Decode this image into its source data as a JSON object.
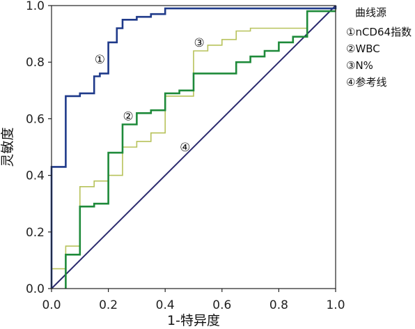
{
  "chart_data": {
    "type": "line",
    "title": "",
    "xlabel": "1-特异度",
    "ylabel": "灵敏度",
    "xlim": [
      0,
      1
    ],
    "ylim": [
      0,
      1
    ],
    "x_ticks": [
      "0.0",
      "0.2",
      "0.4",
      "0.6",
      "0.8",
      "1.0"
    ],
    "y_ticks": [
      "0.0",
      "0.2",
      "0.4",
      "0.6",
      "0.8",
      "1.0"
    ],
    "grid": false,
    "legend": {
      "title": "曲线源",
      "placement": "right",
      "entries": [
        "①nCD64指数",
        "②WBC",
        "③N%",
        "④参考线"
      ]
    },
    "series": [
      {
        "tag": "①",
        "color": "#1f3a8a",
        "points": [
          [
            0,
            0
          ],
          [
            0,
            0.43
          ],
          [
            0.05,
            0.43
          ],
          [
            0.05,
            0.68
          ],
          [
            0.1,
            0.68
          ],
          [
            0.1,
            0.69
          ],
          [
            0.15,
            0.69
          ],
          [
            0.15,
            0.75
          ],
          [
            0.17,
            0.75
          ],
          [
            0.17,
            0.76
          ],
          [
            0.2,
            0.76
          ],
          [
            0.2,
            0.87
          ],
          [
            0.23,
            0.87
          ],
          [
            0.23,
            0.92
          ],
          [
            0.25,
            0.92
          ],
          [
            0.25,
            0.95
          ],
          [
            0.3,
            0.95
          ],
          [
            0.3,
            0.96
          ],
          [
            0.35,
            0.96
          ],
          [
            0.35,
            0.97
          ],
          [
            0.4,
            0.97
          ],
          [
            0.4,
            0.99
          ],
          [
            1,
            0.99
          ],
          [
            1,
            1
          ]
        ]
      },
      {
        "tag": "②",
        "color": "#1e8a3a",
        "points": [
          [
            0.05,
            0
          ],
          [
            0.05,
            0.12
          ],
          [
            0.1,
            0.12
          ],
          [
            0.1,
            0.29
          ],
          [
            0.15,
            0.29
          ],
          [
            0.15,
            0.3
          ],
          [
            0.2,
            0.3
          ],
          [
            0.2,
            0.48
          ],
          [
            0.25,
            0.48
          ],
          [
            0.25,
            0.58
          ],
          [
            0.3,
            0.58
          ],
          [
            0.3,
            0.62
          ],
          [
            0.35,
            0.62
          ],
          [
            0.35,
            0.63
          ],
          [
            0.4,
            0.63
          ],
          [
            0.4,
            0.69
          ],
          [
            0.45,
            0.69
          ],
          [
            0.45,
            0.7
          ],
          [
            0.5,
            0.7
          ],
          [
            0.5,
            0.76
          ],
          [
            0.65,
            0.76
          ],
          [
            0.65,
            0.8
          ],
          [
            0.7,
            0.8
          ],
          [
            0.7,
            0.82
          ],
          [
            0.75,
            0.82
          ],
          [
            0.75,
            0.84
          ],
          [
            0.8,
            0.84
          ],
          [
            0.8,
            0.87
          ],
          [
            0.85,
            0.87
          ],
          [
            0.85,
            0.89
          ],
          [
            0.9,
            0.89
          ],
          [
            0.9,
            0.98
          ],
          [
            1,
            0.98
          ]
        ]
      },
      {
        "tag": "③",
        "color": "#b7c25a",
        "points": [
          [
            0,
            0
          ],
          [
            0,
            0.07
          ],
          [
            0.05,
            0.07
          ],
          [
            0.05,
            0.15
          ],
          [
            0.1,
            0.15
          ],
          [
            0.1,
            0.36
          ],
          [
            0.15,
            0.36
          ],
          [
            0.15,
            0.38
          ],
          [
            0.2,
            0.38
          ],
          [
            0.2,
            0.4
          ],
          [
            0.25,
            0.4
          ],
          [
            0.25,
            0.5
          ],
          [
            0.3,
            0.5
          ],
          [
            0.3,
            0.52
          ],
          [
            0.35,
            0.52
          ],
          [
            0.35,
            0.55
          ],
          [
            0.4,
            0.55
          ],
          [
            0.4,
            0.68
          ],
          [
            0.5,
            0.68
          ],
          [
            0.5,
            0.84
          ],
          [
            0.55,
            0.84
          ],
          [
            0.55,
            0.86
          ],
          [
            0.6,
            0.86
          ],
          [
            0.6,
            0.88
          ],
          [
            0.65,
            0.88
          ],
          [
            0.65,
            0.91
          ],
          [
            0.7,
            0.91
          ],
          [
            0.7,
            0.92
          ],
          [
            0.9,
            0.92
          ],
          [
            0.9,
            0.98
          ],
          [
            1,
            0.98
          ],
          [
            1,
            1
          ]
        ]
      },
      {
        "tag": "④",
        "color": "#2b2a6e",
        "points": [
          [
            0,
            0
          ],
          [
            1,
            1
          ]
        ]
      }
    ]
  }
}
